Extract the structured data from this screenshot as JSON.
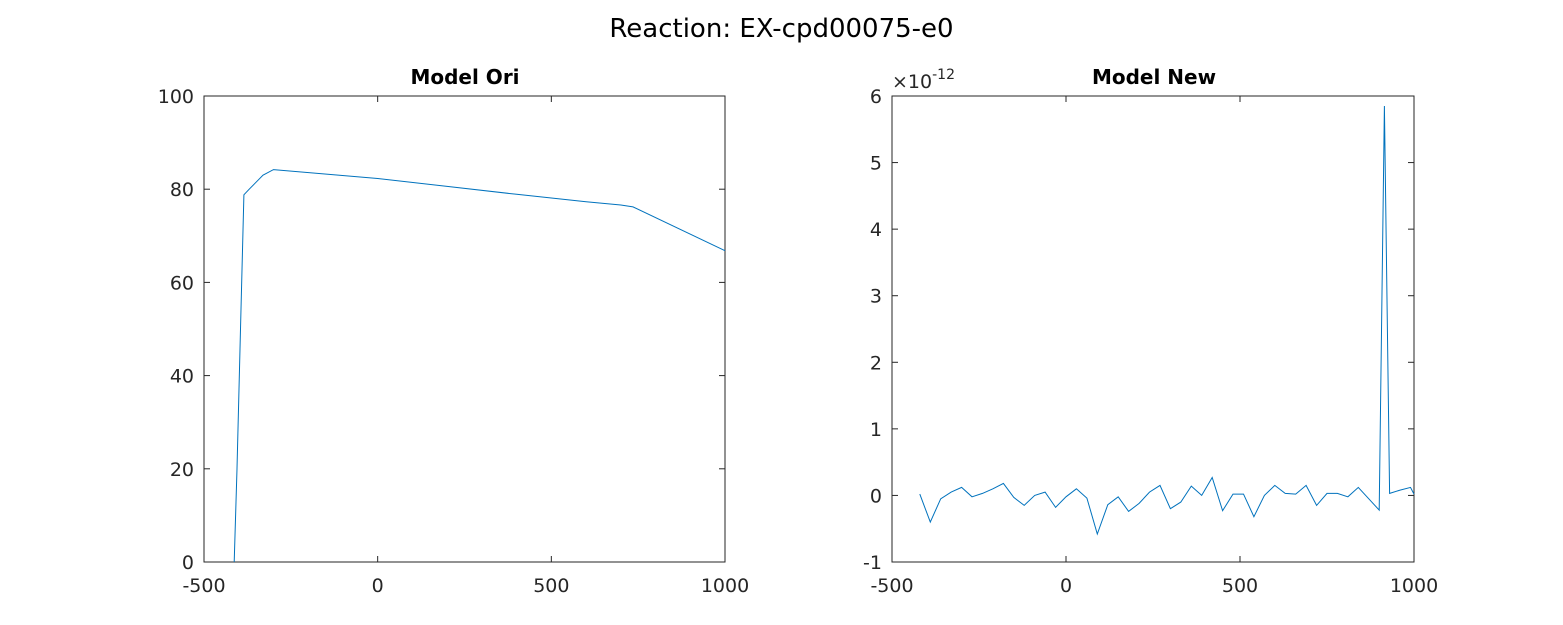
{
  "figure": {
    "title": "Reaction: EX-cpd00075-e0"
  },
  "colors": {
    "line": "#0072BD",
    "axis": "#262626",
    "background": "#ffffff"
  },
  "chart_data": [
    {
      "type": "line",
      "title": "Model Ori",
      "xlabel": "",
      "ylabel": "",
      "xlim": [
        -500,
        1000
      ],
      "ylim": [
        0,
        100
      ],
      "xticks": [
        "-500",
        "0",
        "500",
        "1000"
      ],
      "yticks": [
        "0",
        "20",
        "40",
        "60",
        "80",
        "100"
      ],
      "grid": false,
      "series": [
        {
          "x": [
            -413,
            -405,
            -395,
            -385,
            -370,
            -350,
            -330,
            -300,
            0,
            200,
            400,
            600,
            700,
            735,
            1000
          ],
          "y": [
            0,
            20,
            50,
            78.8,
            80.0,
            81.5,
            83.0,
            84.2,
            82.3,
            80.6,
            78.9,
            77.3,
            76.6,
            76.2,
            66.8
          ]
        }
      ]
    },
    {
      "type": "line",
      "title": "Model New",
      "xlabel": "",
      "ylabel": "",
      "xlim": [
        -500,
        1000
      ],
      "ylim": [
        -1,
        6
      ],
      "y_exponent": "×10-12",
      "xticks": [
        "-500",
        "0",
        "500",
        "1000"
      ],
      "yticks": [
        "-1",
        "0",
        "1",
        "2",
        "3",
        "4",
        "5",
        "6"
      ],
      "grid": false,
      "series": [
        {
          "x": [
            -420,
            -390,
            -360,
            -330,
            -300,
            -270,
            -240,
            -210,
            -180,
            -150,
            -120,
            -90,
            -60,
            -30,
            0,
            30,
            60,
            90,
            120,
            150,
            180,
            210,
            240,
            270,
            300,
            330,
            360,
            390,
            420,
            450,
            480,
            510,
            540,
            570,
            600,
            630,
            660,
            690,
            720,
            750,
            780,
            810,
            840,
            870,
            900,
            915,
            930,
            960,
            990,
            1000
          ],
          "y": [
            0.02,
            -0.4,
            -0.05,
            0.05,
            0.12,
            -0.02,
            0.03,
            0.1,
            0.18,
            -0.03,
            -0.15,
            0.0,
            0.05,
            -0.18,
            -0.02,
            0.1,
            -0.04,
            -0.58,
            -0.14,
            -0.02,
            -0.24,
            -0.12,
            0.05,
            0.15,
            -0.2,
            -0.1,
            0.14,
            0.0,
            0.27,
            -0.23,
            0.02,
            0.02,
            -0.32,
            0.0,
            0.15,
            0.03,
            0.02,
            0.15,
            -0.15,
            0.03,
            0.03,
            -0.02,
            0.12,
            -0.05,
            -0.22,
            5.85,
            0.03,
            0.08,
            0.12,
            0.02
          ]
        }
      ]
    }
  ]
}
